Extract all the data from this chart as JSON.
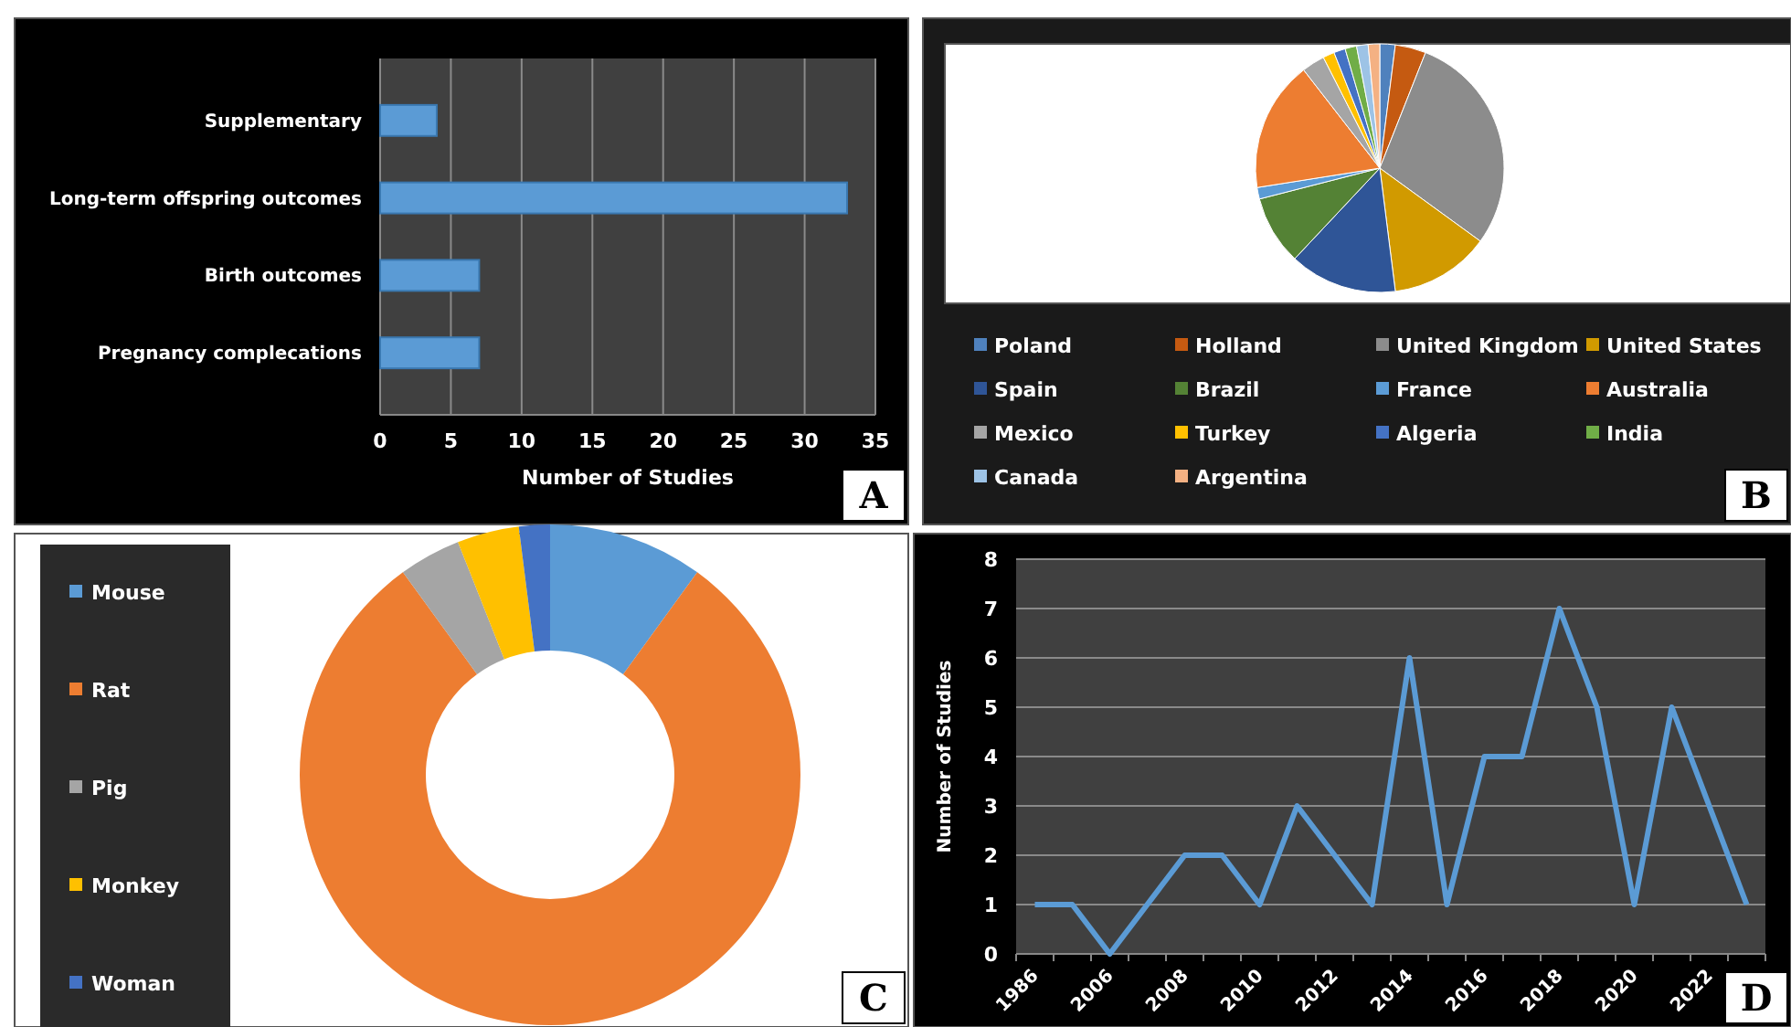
{
  "chart_data": [
    {
      "type": "bar",
      "orientation": "horizontal",
      "categories": [
        "Supplementary",
        "Long-term offspring outcomes",
        "Birth outcomes",
        "Pregnancy complecations"
      ],
      "values": [
        4,
        33,
        7,
        7
      ],
      "color": "#5b9bd5",
      "xlim": [
        0,
        35
      ],
      "xticks": [
        0,
        5,
        10,
        15,
        20,
        25,
        30,
        35
      ],
      "xlabel": "Number of Studies",
      "grid": "x",
      "annotations": [
        "A"
      ]
    },
    {
      "type": "pie",
      "categories": [
        "Poland",
        "Holland",
        "United Kingdom",
        "United States",
        "Spain",
        "Brazil",
        "France",
        "Australia",
        "Mexico",
        "Turkey",
        "Algeria",
        "India",
        "Canada",
        "Argentina"
      ],
      "values": [
        2,
        4,
        29,
        13,
        14,
        9,
        1.5,
        17,
        3,
        1.5,
        1.5,
        1.5,
        1.5,
        1.5
      ],
      "colors": [
        "#4f81bd",
        "#c55a11",
        "#8c8c8c",
        "#d19a00",
        "#2f5597",
        "#548235",
        "#5b9bd5",
        "#ed7d31",
        "#a5a5a5",
        "#ffc000",
        "#4472c4",
        "#70ad47",
        "#9dc3e6",
        "#f4b183"
      ],
      "legend": "bottom",
      "annotations": [
        "B"
      ]
    },
    {
      "type": "donut",
      "categories": [
        "Mouse",
        "Rat",
        "Pig",
        "Monkey",
        "Woman"
      ],
      "values": [
        10,
        80,
        4,
        4,
        2
      ],
      "colors": [
        "#5b9bd5",
        "#ed7d31",
        "#a5a5a5",
        "#ffc000",
        "#4472c4"
      ],
      "legend": "left",
      "annotations": [
        "C"
      ]
    },
    {
      "type": "line",
      "categories": [
        "1986",
        null,
        "2006",
        null,
        "2008",
        null,
        "2010",
        null,
        "2012",
        null,
        "2014",
        null,
        "2016",
        null,
        "2018",
        null,
        "2020",
        null,
        "2022",
        null
      ],
      "values": [
        1,
        1,
        0,
        1,
        2,
        2,
        1,
        3,
        2,
        1,
        6,
        1,
        4,
        4,
        7,
        5,
        1,
        5,
        3,
        1
      ],
      "color": "#5b9bd5",
      "ylim": [
        0,
        8
      ],
      "yticks": [
        0,
        1,
        2,
        3,
        4,
        5,
        6,
        7,
        8
      ],
      "ylabel": "Number of Studies",
      "grid": "y",
      "annotations": [
        "D"
      ]
    }
  ]
}
